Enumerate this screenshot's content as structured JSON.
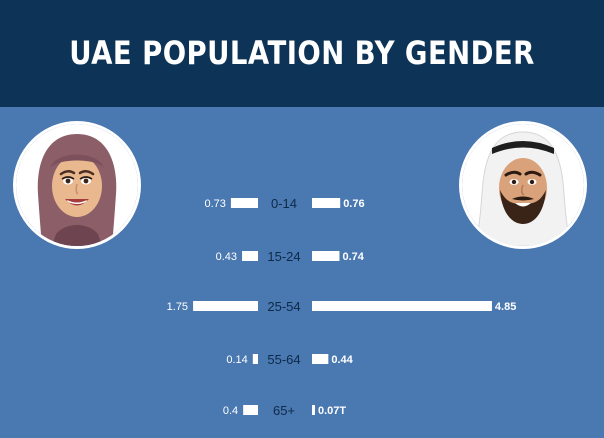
{
  "colors": {
    "banner": "#0d3457",
    "panel": "#4a78b0",
    "bar": "#ffffff",
    "age_text": "#0d2a4a",
    "value_text": "#ffffff",
    "avatar_bg": "#ffffff"
  },
  "header": {
    "title": "UAE POPULATION BY GENDER"
  },
  "avatars": {
    "female": "woman-hijab-avatar-icon",
    "male": "man-ghutra-avatar-icon"
  },
  "chart_data": {
    "type": "bar",
    "orientation": "horizontal-population-pyramid",
    "title": "UAE POPULATION BY GENDER",
    "categories": [
      "0-14",
      "15-24",
      "25-54",
      "55-64",
      "65+"
    ],
    "series": [
      {
        "values": [
          0.73,
          0.43,
          1.75,
          0.14,
          0.4
        ]
      },
      {
        "values": [
          0.76,
          0.74,
          4.85,
          0.44,
          0.07
        ]
      }
    ],
    "value_labels": {
      "left": [
        "0.73",
        "0.43",
        "1.75",
        "0.14",
        "0.4"
      ],
      "right": [
        "0.76",
        "0.74",
        "4.85",
        "0.44",
        "0.07T"
      ]
    },
    "grid": false,
    "legend": "none"
  }
}
